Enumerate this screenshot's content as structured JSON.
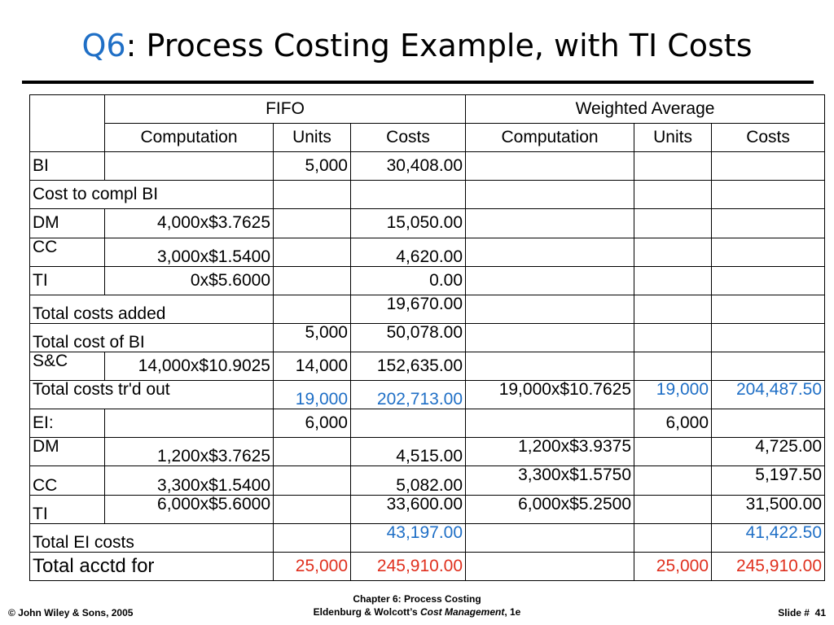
{
  "slide": {
    "title_prefix": "Q6",
    "title_rest": ": Process Costing Example, with TI Costs"
  },
  "table": {
    "group_headers": {
      "fifo": "FIFO",
      "weighted_average": "Weighted Average"
    },
    "sub_headers": {
      "fifo_computation": "Computation",
      "fifo_units": "Units",
      "fifo_costs": "Costs",
      "wa_computation": "Computation",
      "wa_units": "Units",
      "wa_costs": "Costs"
    },
    "rows": {
      "bi": {
        "label": "BI",
        "fifo_units": "5,000",
        "fifo_costs": "30,408.00"
      },
      "cost_to_compl_bi": {
        "label": "Cost to compl BI"
      },
      "dm1": {
        "label": "DM",
        "fifo_comp": "4,000x$3.7625",
        "fifo_costs": "15,050.00"
      },
      "cc1": {
        "label": "CC",
        "fifo_comp": "3,000x$1.5400",
        "fifo_costs": "4,620.00"
      },
      "ti1": {
        "label": "TI",
        "fifo_comp": "0x$5.6000",
        "fifo_costs": "0.00"
      },
      "total_added": {
        "label": "Total costs added",
        "fifo_costs": "19,670.00"
      },
      "total_bi": {
        "label": "Total cost of BI",
        "fifo_units": "5,000",
        "fifo_costs": "50,078.00"
      },
      "sc": {
        "label": "S&C",
        "fifo_comp": "14,000x$10.9025",
        "fifo_units": "14,000",
        "fifo_costs": "152,635.00"
      },
      "trd_out": {
        "label": "Total costs tr'd out",
        "fifo_units": "19,000",
        "fifo_costs": "202,713.00",
        "wa_comp": "19,000x$10.7625",
        "wa_units": "19,000",
        "wa_costs": "204,487.50"
      },
      "ei": {
        "label": "EI:",
        "fifo_units": "6,000",
        "wa_units": "6,000"
      },
      "dm2": {
        "label": "DM",
        "fifo_comp": "1,200x$3.7625",
        "fifo_costs": "4,515.00",
        "wa_comp": "1,200x$3.9375",
        "wa_costs": "4,725.00"
      },
      "cc2": {
        "label": "CC",
        "fifo_comp": "3,300x$1.5400",
        "fifo_costs": "5,082.00",
        "wa_comp": "3,300x$1.5750",
        "wa_costs": "5,197.50"
      },
      "ti2": {
        "label": "TI",
        "fifo_comp": "6,000x$5.6000",
        "fifo_costs": "33,600.00",
        "wa_comp": "6,000x$5.2500",
        "wa_costs": "31,500.00"
      },
      "total_ei": {
        "label": "Total EI costs",
        "fifo_costs": "43,197.00",
        "wa_costs": "41,422.50"
      },
      "total_acctd": {
        "label": "Total acctd for",
        "fifo_units": "25,000",
        "fifo_costs": "245,910.00",
        "wa_units": "25,000",
        "wa_costs": "245,910.00"
      }
    }
  },
  "footer": {
    "copyright": "© John Wiley & Sons, 2005",
    "chapter": "Chapter 6: Process Costing",
    "book_authors": "Eldenburg & Wolcott’s ",
    "book_title": "Cost Management",
    "book_edition": ", 1e",
    "slide_label": "Slide #",
    "slide_number": "41"
  },
  "colors": {
    "accent_blue": "#1f6fc6",
    "total_red": "#e0301e"
  }
}
